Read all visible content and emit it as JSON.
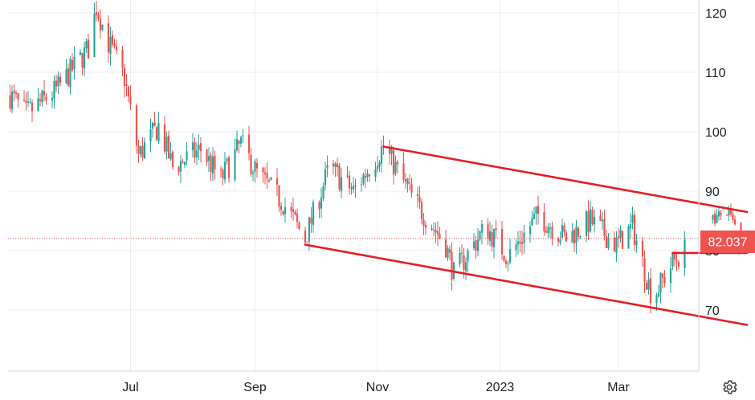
{
  "chart_data": {
    "type": "candlestick",
    "title": "",
    "xlabel": "",
    "ylabel": "",
    "x_tick_labels": [
      "Jul",
      "Sep",
      "Nov",
      "2023",
      "Mar"
    ],
    "x_tick_dates": [
      "2022-07-01",
      "2022-09-01",
      "2022-11-01",
      "2023-01-01",
      "2023-03-01"
    ],
    "x_range": [
      "2022-05-01",
      "2023-04-10"
    ],
    "y_ticks": [
      70,
      80,
      90,
      100,
      110,
      120
    ],
    "ylim": [
      60,
      122
    ],
    "grid": true,
    "last_price": {
      "value": 82.037,
      "label": "82.037",
      "color": "#ef5350"
    },
    "colors": {
      "up": "#26a69a",
      "down": "#ef5350",
      "trendline": "#e31e24",
      "grid": "#ececec",
      "price_line": "#ef5350"
    },
    "price_path": [
      {
        "date": "2022-05-01",
        "value": 106.5
      },
      {
        "date": "2022-05-10",
        "value": 103
      },
      {
        "date": "2022-05-25",
        "value": 107
      },
      {
        "date": "2022-06-10",
        "value": 114
      },
      {
        "date": "2022-06-14",
        "value": 121
      },
      {
        "date": "2022-06-20",
        "value": 115
      },
      {
        "date": "2022-06-28",
        "value": 109
      },
      {
        "date": "2022-07-05",
        "value": 96
      },
      {
        "date": "2022-07-15",
        "value": 101
      },
      {
        "date": "2022-07-22",
        "value": 94
      },
      {
        "date": "2022-08-05",
        "value": 97
      },
      {
        "date": "2022-08-15",
        "value": 92
      },
      {
        "date": "2022-08-25",
        "value": 98
      },
      {
        "date": "2022-09-02",
        "value": 93
      },
      {
        "date": "2022-09-15",
        "value": 88
      },
      {
        "date": "2022-09-26",
        "value": 82
      },
      {
        "date": "2022-10-08",
        "value": 94
      },
      {
        "date": "2022-10-20",
        "value": 90
      },
      {
        "date": "2022-11-04",
        "value": 97.5
      },
      {
        "date": "2022-11-20",
        "value": 88
      },
      {
        "date": "2022-12-05",
        "value": 81
      },
      {
        "date": "2022-12-09",
        "value": 76
      },
      {
        "date": "2022-12-25",
        "value": 84
      },
      {
        "date": "2023-01-05",
        "value": 79
      },
      {
        "date": "2023-01-20",
        "value": 86
      },
      {
        "date": "2023-02-03",
        "value": 82
      },
      {
        "date": "2023-02-15",
        "value": 85
      },
      {
        "date": "2023-02-28",
        "value": 81
      },
      {
        "date": "2023-03-08",
        "value": 84
      },
      {
        "date": "2023-03-18",
        "value": 72
      },
      {
        "date": "2023-03-28",
        "value": 78
      },
      {
        "date": "2023-04-03",
        "value": 80
      }
    ],
    "recent_path": [
      {
        "date": "2023-04-16",
        "value": 85
      },
      {
        "date": "2023-04-24",
        "value": 86.5
      },
      {
        "date": "2023-05-01",
        "value": 82
      }
    ],
    "trendlines": [
      {
        "from": {
          "date": "2022-11-04",
          "value": 97.5
        },
        "to": {
          "date": "2023-05-04",
          "value": 86.5
        }
      },
      {
        "from": {
          "date": "2022-09-26",
          "value": 81
        },
        "to": {
          "date": "2023-05-04",
          "value": 67.5
        }
      },
      {
        "from": {
          "date": "2023-03-28",
          "value": 79.6
        },
        "to": {
          "date": "2023-05-04",
          "value": 79.6
        }
      }
    ]
  },
  "ui": {
    "settings_icon": "gear-icon"
  }
}
